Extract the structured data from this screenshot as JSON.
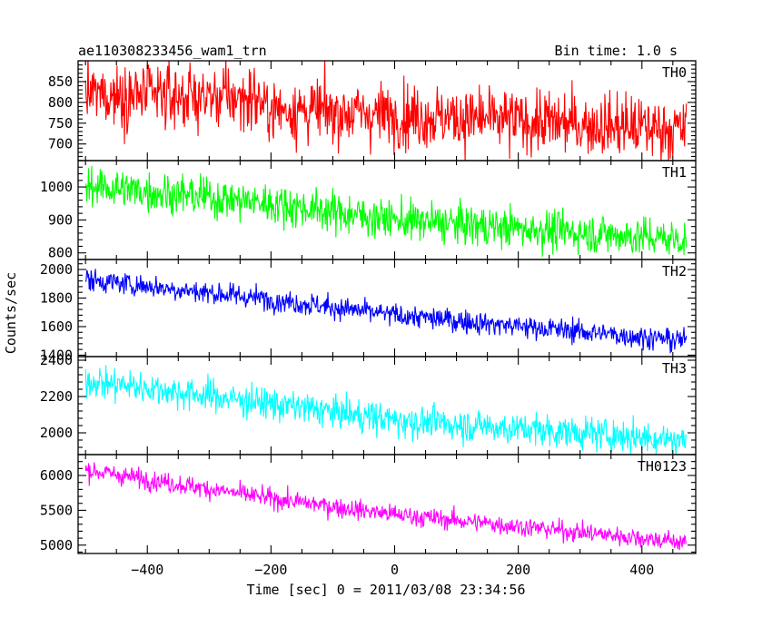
{
  "header": {
    "title": "ae110308233456_wam1_trn",
    "bin_time": "Bin time: 1.0 s"
  },
  "chart_data": {
    "type": "line",
    "xlabel": "Time [sec] 0 = 2011/03/08 23:34:56",
    "ylabel": "Counts/sec",
    "xlim": [
      -512,
      487
    ],
    "x_ticks": [
      -400,
      -200,
      0,
      200,
      400
    ],
    "x_range_data": [
      -500,
      472
    ],
    "bin_time_s": 1.0,
    "grid": false,
    "panels": [
      {
        "name": "TH0",
        "color": "#ff0000",
        "ylim": [
          660,
          900
        ],
        "yticks": [
          700,
          750,
          800,
          850
        ],
        "trend": [
          [
            -500,
            820
          ],
          [
            -220,
            810
          ],
          [
            -210,
            785
          ],
          [
            0,
            770
          ],
          [
            472,
            735
          ]
        ],
        "noise_sd": 38
      },
      {
        "name": "TH1",
        "color": "#00ff00",
        "ylim": [
          780,
          1080
        ],
        "yticks": [
          800,
          900,
          1000
        ],
        "trend": [
          [
            -500,
            1005
          ],
          [
            -200,
            950
          ],
          [
            0,
            900
          ],
          [
            472,
            840
          ]
        ],
        "noise_sd": 30
      },
      {
        "name": "TH2",
        "color": "#0000ff",
        "ylim": [
          1390,
          2070
        ],
        "yticks": [
          1400,
          1600,
          1800,
          2000
        ],
        "trend": [
          [
            -500,
            1930
          ],
          [
            -200,
            1790
          ],
          [
            0,
            1680
          ],
          [
            472,
            1500
          ]
        ],
        "noise_sd": 40
      },
      {
        "name": "TH3",
        "color": "#00ffff",
        "ylim": [
          1880,
          2420
        ],
        "yticks": [
          2000,
          2200,
          2400
        ],
        "trend": [
          [
            -500,
            2290
          ],
          [
            -200,
            2160
          ],
          [
            0,
            2070
          ],
          [
            472,
            1960
          ]
        ],
        "noise_sd": 45
      },
      {
        "name": "TH0123",
        "color": "#ff00ff",
        "ylim": [
          4880,
          6300
        ],
        "yticks": [
          5000,
          5500,
          6000
        ],
        "trend": [
          [
            -500,
            6080
          ],
          [
            -200,
            5670
          ],
          [
            0,
            5440
          ],
          [
            472,
            5040
          ]
        ],
        "noise_sd": 70
      }
    ]
  }
}
